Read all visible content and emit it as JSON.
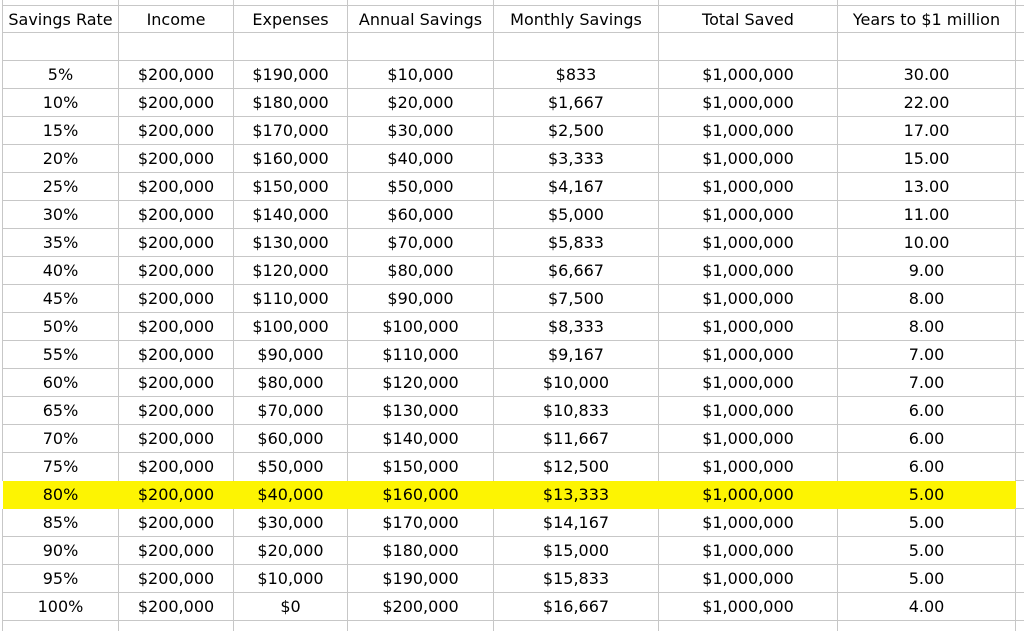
{
  "sheet": {
    "columns": [
      "Savings Rate",
      "Income",
      "Expenses",
      "Annual Savings",
      "Monthly Savings",
      "Total Saved",
      "Years to $1 million"
    ],
    "rows": [
      [
        "5%",
        "$200,000",
        "$190,000",
        "$10,000",
        "$833",
        "$1,000,000",
        "30.00"
      ],
      [
        "10%",
        "$200,000",
        "$180,000",
        "$20,000",
        "$1,667",
        "$1,000,000",
        "22.00"
      ],
      [
        "15%",
        "$200,000",
        "$170,000",
        "$30,000",
        "$2,500",
        "$1,000,000",
        "17.00"
      ],
      [
        "20%",
        "$200,000",
        "$160,000",
        "$40,000",
        "$3,333",
        "$1,000,000",
        "15.00"
      ],
      [
        "25%",
        "$200,000",
        "$150,000",
        "$50,000",
        "$4,167",
        "$1,000,000",
        "13.00"
      ],
      [
        "30%",
        "$200,000",
        "$140,000",
        "$60,000",
        "$5,000",
        "$1,000,000",
        "11.00"
      ],
      [
        "35%",
        "$200,000",
        "$130,000",
        "$70,000",
        "$5,833",
        "$1,000,000",
        "10.00"
      ],
      [
        "40%",
        "$200,000",
        "$120,000",
        "$80,000",
        "$6,667",
        "$1,000,000",
        "9.00"
      ],
      [
        "45%",
        "$200,000",
        "$110,000",
        "$90,000",
        "$7,500",
        "$1,000,000",
        "8.00"
      ],
      [
        "50%",
        "$200,000",
        "$100,000",
        "$100,000",
        "$8,333",
        "$1,000,000",
        "8.00"
      ],
      [
        "55%",
        "$200,000",
        "$90,000",
        "$110,000",
        "$9,167",
        "$1,000,000",
        "7.00"
      ],
      [
        "60%",
        "$200,000",
        "$80,000",
        "$120,000",
        "$10,000",
        "$1,000,000",
        "7.00"
      ],
      [
        "65%",
        "$200,000",
        "$70,000",
        "$130,000",
        "$10,833",
        "$1,000,000",
        "6.00"
      ],
      [
        "70%",
        "$200,000",
        "$60,000",
        "$140,000",
        "$11,667",
        "$1,000,000",
        "6.00"
      ],
      [
        "75%",
        "$200,000",
        "$50,000",
        "$150,000",
        "$12,500",
        "$1,000,000",
        "6.00"
      ],
      [
        "80%",
        "$200,000",
        "$40,000",
        "$160,000",
        "$13,333",
        "$1,000,000",
        "5.00"
      ],
      [
        "85%",
        "$200,000",
        "$30,000",
        "$170,000",
        "$14,167",
        "$1,000,000",
        "5.00"
      ],
      [
        "90%",
        "$200,000",
        "$20,000",
        "$180,000",
        "$15,000",
        "$1,000,000",
        "5.00"
      ],
      [
        "95%",
        "$200,000",
        "$10,000",
        "$190,000",
        "$15,833",
        "$1,000,000",
        "5.00"
      ],
      [
        "100%",
        "$200,000",
        "$0",
        "$200,000",
        "$16,667",
        "$1,000,000",
        "4.00"
      ]
    ],
    "highlighted_row_index": 15,
    "highlighted_row_label": "80%",
    "highlight_color": "#fdf402",
    "gridline_color": "#c7c7c7",
    "text_color": "#000000"
  }
}
